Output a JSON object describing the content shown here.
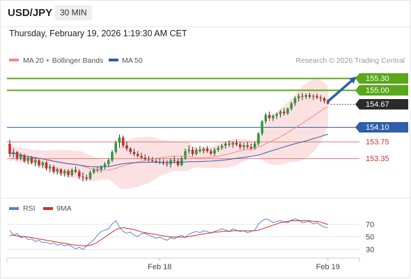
{
  "header": {
    "symbol": "USD/JPY",
    "timeframe": "30 MIN",
    "datetime": "Thursday, February 19, 2026 1:19:30 AM CET"
  },
  "legend": {
    "ma20": "MA 20 + Bollinger Bands",
    "ma50": "MA 50",
    "credit": "Research © 2026 Trading Central"
  },
  "colors": {
    "up": "#2e9b3a",
    "down": "#cc2b2b",
    "ma20": "#f08c8c",
    "ma50": "#2e5fa8",
    "band": "#fad4d4",
    "target": "#58a81a",
    "rsi": "#5a7fd6",
    "rsi_ma": "#d42a2a"
  },
  "chart_data": [
    {
      "type": "candlestick",
      "ylim": [
        152.48,
        155.53
      ],
      "x_ticks": [
        {
          "index": 41,
          "label": "Feb 18"
        },
        {
          "index": 87,
          "label": "Feb 19"
        }
      ],
      "candles": [
        [
          153.7,
          153.8,
          153.38,
          153.45
        ],
        [
          153.45,
          153.58,
          153.36,
          153.5
        ],
        [
          153.5,
          153.52,
          153.3,
          153.35
        ],
        [
          153.35,
          153.48,
          153.3,
          153.42
        ],
        [
          153.42,
          153.45,
          153.24,
          153.28
        ],
        [
          153.28,
          153.4,
          153.2,
          153.36
        ],
        [
          153.36,
          153.4,
          153.2,
          153.24
        ],
        [
          153.24,
          153.35,
          153.15,
          153.3
        ],
        [
          153.3,
          153.32,
          153.12,
          153.18
        ],
        [
          153.18,
          153.28,
          153.1,
          153.24
        ],
        [
          153.24,
          153.28,
          153.05,
          153.1
        ],
        [
          153.1,
          153.2,
          153.0,
          153.14
        ],
        [
          153.14,
          153.18,
          152.96,
          153.02
        ],
        [
          153.02,
          153.12,
          152.95,
          153.08
        ],
        [
          153.08,
          153.1,
          152.92,
          152.98
        ],
        [
          152.98,
          153.08,
          152.9,
          153.04
        ],
        [
          153.04,
          153.08,
          152.88,
          152.94
        ],
        [
          152.94,
          153.1,
          152.9,
          153.06
        ],
        [
          153.06,
          153.15,
          152.98,
          153.02
        ],
        [
          153.02,
          153.08,
          152.84,
          152.9
        ],
        [
          152.9,
          153.0,
          152.78,
          152.88
        ],
        [
          152.88,
          152.95,
          152.8,
          152.85
        ],
        [
          152.85,
          153.05,
          152.82,
          153.0
        ],
        [
          153.0,
          153.12,
          152.96,
          153.08
        ],
        [
          153.08,
          153.15,
          153.0,
          153.05
        ],
        [
          153.05,
          153.18,
          153.0,
          153.14
        ],
        [
          153.14,
          153.25,
          153.08,
          153.2
        ],
        [
          153.2,
          153.35,
          153.15,
          153.3
        ],
        [
          153.3,
          153.55,
          153.25,
          153.5
        ],
        [
          153.5,
          153.78,
          153.45,
          153.72
        ],
        [
          153.72,
          153.92,
          153.6,
          153.85
        ],
        [
          153.85,
          153.9,
          153.6,
          153.66
        ],
        [
          153.66,
          153.75,
          153.52,
          153.58
        ],
        [
          153.58,
          153.62,
          153.44,
          153.5
        ],
        [
          153.5,
          153.58,
          153.4,
          153.45
        ],
        [
          153.45,
          153.52,
          153.36,
          153.4
        ],
        [
          153.4,
          153.48,
          153.32,
          153.36
        ],
        [
          153.36,
          153.44,
          153.28,
          153.32
        ],
        [
          153.32,
          153.4,
          153.26,
          153.3
        ],
        [
          153.3,
          153.38,
          153.24,
          153.28
        ],
        [
          153.28,
          153.36,
          153.22,
          153.26
        ],
        [
          153.26,
          153.34,
          153.2,
          153.24
        ],
        [
          153.24,
          153.32,
          153.18,
          153.22
        ],
        [
          153.22,
          153.3,
          153.14,
          153.2
        ],
        [
          153.2,
          153.34,
          153.12,
          153.3
        ],
        [
          153.3,
          153.4,
          153.22,
          153.28
        ],
        [
          153.28,
          153.34,
          153.14,
          153.18
        ],
        [
          153.18,
          153.4,
          153.15,
          153.35
        ],
        [
          153.35,
          153.58,
          153.3,
          153.52
        ],
        [
          153.52,
          153.66,
          153.45,
          153.55
        ],
        [
          153.55,
          153.62,
          153.4,
          153.45
        ],
        [
          153.45,
          153.6,
          153.42,
          153.55
        ],
        [
          153.55,
          153.65,
          153.48,
          153.52
        ],
        [
          153.52,
          153.62,
          153.46,
          153.58
        ],
        [
          153.58,
          153.64,
          153.48,
          153.52
        ],
        [
          153.52,
          153.58,
          153.42,
          153.46
        ],
        [
          153.46,
          153.6,
          153.4,
          153.55
        ],
        [
          153.55,
          153.65,
          153.5,
          153.6
        ],
        [
          153.6,
          153.7,
          153.55,
          153.65
        ],
        [
          153.65,
          153.74,
          153.58,
          153.7
        ],
        [
          153.7,
          153.78,
          153.62,
          153.68
        ],
        [
          153.68,
          153.76,
          153.6,
          153.72
        ],
        [
          153.72,
          153.8,
          153.64,
          153.68
        ],
        [
          153.68,
          153.75,
          153.56,
          153.62
        ],
        [
          153.62,
          153.72,
          153.55,
          153.66
        ],
        [
          153.66,
          153.74,
          153.58,
          153.62
        ],
        [
          153.62,
          153.7,
          153.54,
          153.58
        ],
        [
          153.58,
          153.75,
          153.55,
          153.7
        ],
        [
          153.7,
          153.98,
          153.65,
          153.95
        ],
        [
          153.95,
          154.28,
          153.9,
          154.24
        ],
        [
          154.24,
          154.45,
          154.18,
          154.4
        ],
        [
          154.4,
          154.48,
          154.25,
          154.32
        ],
        [
          154.32,
          154.42,
          154.25,
          154.38
        ],
        [
          154.38,
          154.46,
          154.3,
          154.42
        ],
        [
          154.42,
          154.52,
          154.34,
          154.48
        ],
        [
          154.48,
          154.56,
          154.38,
          154.44
        ],
        [
          154.44,
          154.58,
          154.4,
          154.55
        ],
        [
          154.55,
          154.72,
          154.5,
          154.68
        ],
        [
          154.68,
          154.85,
          154.62,
          154.8
        ],
        [
          154.8,
          154.92,
          154.72,
          154.86
        ],
        [
          154.86,
          154.94,
          154.76,
          154.84
        ],
        [
          154.84,
          154.92,
          154.78,
          154.88
        ],
        [
          154.88,
          154.94,
          154.8,
          154.84
        ],
        [
          154.84,
          154.9,
          154.76,
          154.86
        ],
        [
          154.86,
          154.92,
          154.78,
          154.82
        ],
        [
          154.82,
          154.88,
          154.72,
          154.8
        ],
        [
          154.8,
          154.84,
          154.68,
          154.74
        ],
        [
          154.74,
          154.78,
          154.65,
          154.67
        ]
      ],
      "lines": [
        {
          "name": "155.30",
          "value": 155.3,
          "kind": "target"
        },
        {
          "name": "155.00",
          "value": 155.0,
          "kind": "target"
        },
        {
          "name": "154.67",
          "value": 154.67,
          "kind": "price"
        },
        {
          "name": "154.10",
          "value": 154.1,
          "kind": "pivot"
        },
        {
          "name": "153.75",
          "value": 153.75,
          "kind": "support"
        },
        {
          "name": "153.35",
          "value": 153.35,
          "kind": "support"
        }
      ]
    },
    {
      "type": "line",
      "ylim": [
        20,
        80
      ],
      "y_ticks": [
        70,
        50,
        30
      ],
      "series": [
        {
          "name": "RSI",
          "values": [
            60,
            52,
            55,
            48,
            50,
            45,
            46,
            42,
            44,
            40,
            41,
            38,
            40,
            36,
            38,
            35,
            37,
            34,
            30,
            33,
            29,
            35,
            40,
            45,
            52,
            58,
            60,
            62,
            70,
            75,
            65,
            58,
            55,
            57,
            52,
            50,
            54,
            55,
            52,
            50,
            47,
            49,
            46,
            44,
            48,
            46,
            50,
            52,
            48,
            54,
            56,
            58,
            56,
            59,
            58,
            55,
            58,
            60,
            62,
            60,
            58,
            62,
            60,
            58,
            59,
            56,
            58,
            60,
            70,
            75,
            78,
            76,
            72,
            74,
            75,
            73,
            72,
            76,
            78,
            76,
            72,
            73,
            74,
            70,
            72,
            68,
            65,
            64
          ]
        },
        {
          "name": "9MA",
          "values": [
            52,
            52,
            51,
            50,
            50,
            49,
            48,
            47,
            46,
            45,
            44,
            43,
            42,
            41,
            40,
            39,
            38,
            37,
            36,
            36,
            35,
            35,
            36,
            38,
            41,
            45,
            49,
            53,
            57,
            61,
            63,
            64,
            63,
            62,
            61,
            59,
            57,
            56,
            55,
            54,
            53,
            52,
            51,
            50,
            49,
            49,
            49,
            49,
            49,
            50,
            51,
            52,
            53,
            54,
            55,
            56,
            57,
            57,
            58,
            58,
            58,
            59,
            59,
            59,
            59,
            59,
            59,
            59,
            60,
            62,
            64,
            66,
            68,
            70,
            72,
            73,
            74,
            75,
            75,
            75,
            75,
            75,
            75,
            74,
            74,
            73,
            71,
            69
          ]
        }
      ]
    }
  ]
}
